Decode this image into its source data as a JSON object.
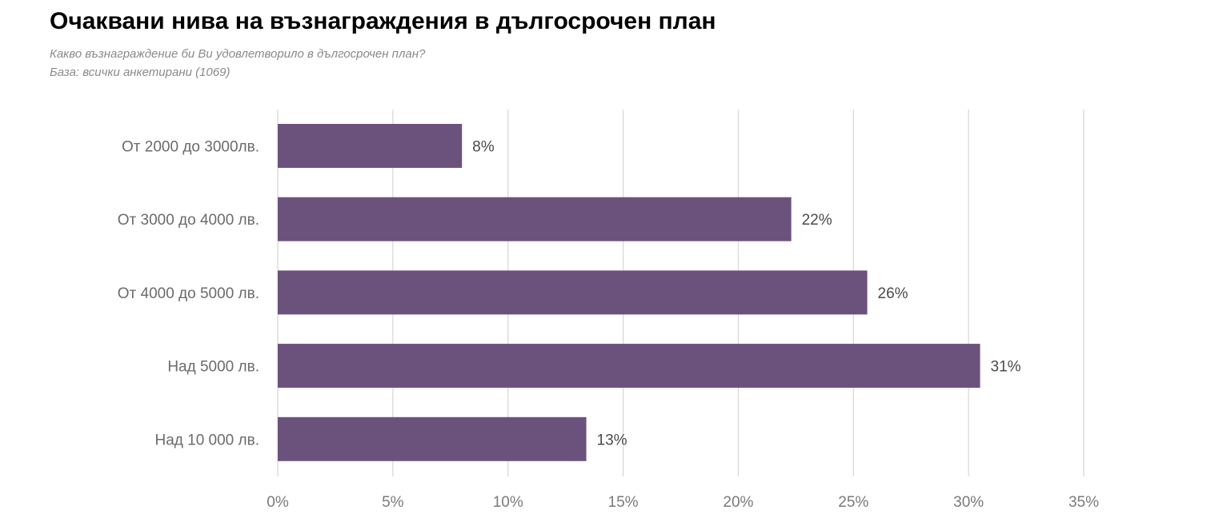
{
  "header": {
    "title": "Очаквани нива на възнаграждения в дългосрочен план",
    "subtitle_question": "Какво възнаграждение би Ви удовлетворило в дългосрочен план?",
    "subtitle_base": "База: всички анкетирани (1069)"
  },
  "colors": {
    "bar": "#6b527d",
    "grid": "#d9d9d9",
    "axis_text": "#7a7a7a"
  },
  "chart_data": {
    "type": "bar",
    "orientation": "horizontal",
    "categories": [
      "От 2000 до 3000лв.",
      "От 3000 до 4000 лв.",
      "От 4000 до 5000 лв.",
      "Над 5000 лв.",
      "Над 10 000 лв."
    ],
    "values": [
      8,
      22.3,
      25.6,
      30.5,
      13.4
    ],
    "data_labels": [
      "8%",
      "22%",
      "26%",
      "31%",
      "13%"
    ],
    "xlim": [
      0,
      35
    ],
    "x_ticks": [
      0,
      5,
      10,
      15,
      20,
      25,
      30,
      35
    ],
    "x_tick_labels": [
      "0%",
      "5%",
      "10%",
      "15%",
      "20%",
      "25%",
      "30%",
      "35%"
    ],
    "grid": "vertical",
    "legend": "none"
  }
}
